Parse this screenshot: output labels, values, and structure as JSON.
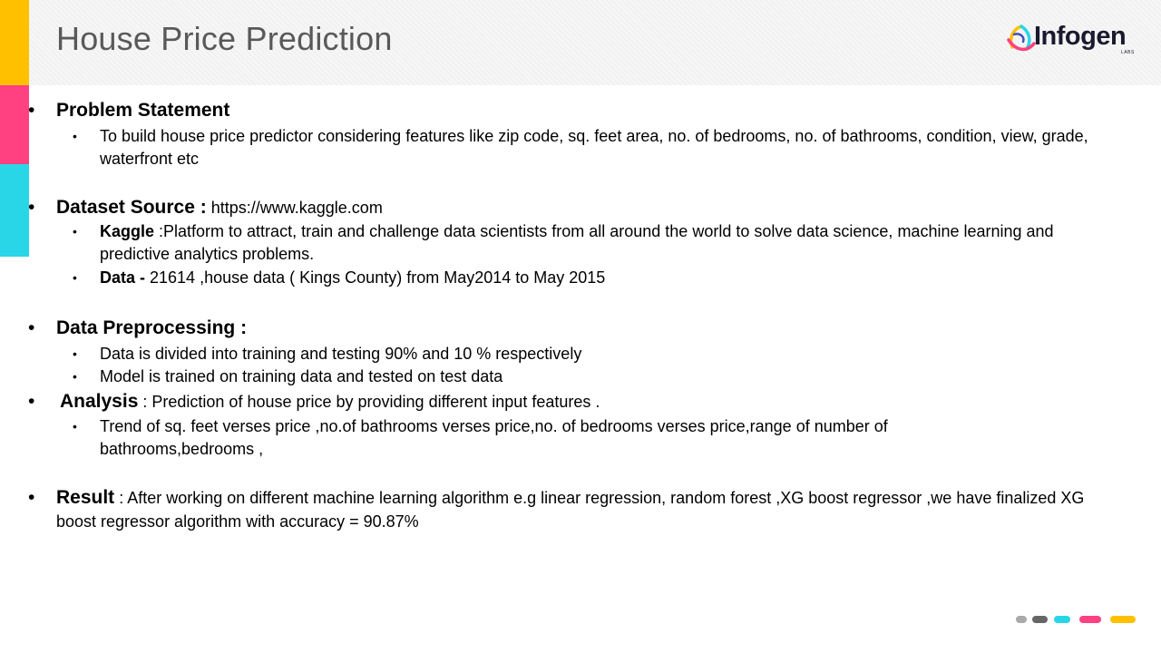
{
  "title": "House Price Prediction",
  "logo": {
    "name": "Infogen",
    "sub": "LABS"
  },
  "colors": {
    "yellow": "#ffc000",
    "pink": "#ff4081",
    "cyan": "#29d6e8",
    "dark_gray": "#666666",
    "light_gray": "#aaaaaa"
  },
  "sections": {
    "problem": {
      "heading": "Problem Statement",
      "items": [
        "To build house price predictor considering  features like zip code, sq. feet area, no. of bedrooms, no. of bathrooms, condition, view, grade, waterfront etc"
      ]
    },
    "dataset": {
      "heading": "Dataset Source :",
      "value": " https://www.kaggle.com",
      "kaggle_label": "Kaggle",
      "kaggle_text": " :Platform to attract, train and challenge data scientists from all around the world to solve data science, machine learning and predictive analytics problems.",
      "data_label": "Data -",
      "data_text": " 21614 ,house data ( Kings County) from May2014 to May 2015"
    },
    "preprocessing": {
      "heading": "Data Preprocessing :",
      "items": [
        "Data is divided into training and testing 90% and 10 % respectively",
        "Model is trained on training data and tested on test data"
      ]
    },
    "analysis": {
      "heading": "Analysis",
      "text": " : Prediction of house price by providing different input features .",
      "items": [
        "Trend of sq. feet verses price ,no.of bathrooms verses price,no. of bedrooms verses price,range of number of bathrooms,bedrooms ,"
      ]
    },
    "result": {
      "heading": "Result",
      "text": "  : After working on different machine learning algorithm e.g linear regression, random forest ,XG boost regressor ,we have finalized XG boost regressor algorithm with accuracy = 90.87%"
    }
  },
  "bullets": {
    "l1": "•",
    "l2": "•"
  }
}
